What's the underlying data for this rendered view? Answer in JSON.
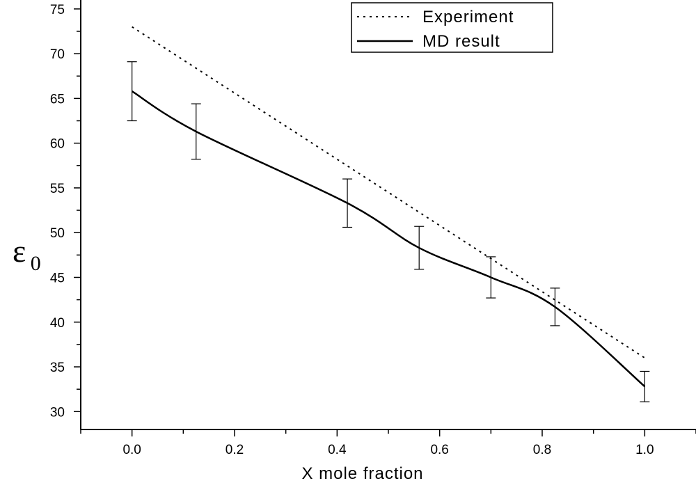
{
  "chart_data": {
    "type": "line",
    "title": "",
    "xlabel": "X mole fraction",
    "ylabel": "ε",
    "ylabel_subscript": "0",
    "xlim": [
      -0.1,
      1.1
    ],
    "ylim": [
      28,
      76
    ],
    "x_ticks": [
      "0.0",
      "0.2",
      "0.4",
      "0.6",
      "0.8",
      "1.0"
    ],
    "x_tick_values": [
      0.0,
      0.2,
      0.4,
      0.6,
      0.8,
      1.0
    ],
    "y_ticks": [
      "30",
      "35",
      "40",
      "45",
      "50",
      "55",
      "60",
      "65",
      "70",
      "75"
    ],
    "y_tick_values": [
      30,
      35,
      40,
      45,
      50,
      55,
      60,
      65,
      70,
      75
    ],
    "grid": false,
    "legend_position": "top-right",
    "series": [
      {
        "name": "Experiment",
        "style": "dotted",
        "x": [
          0.0,
          1.0
        ],
        "y": [
          73.0,
          36.0
        ]
      },
      {
        "name": "MD result",
        "style": "solid",
        "x": [
          0.0,
          0.125,
          0.42,
          0.56,
          0.7,
          0.825,
          1.0
        ],
        "y": [
          65.8,
          61.3,
          53.3,
          48.3,
          45.0,
          41.7,
          32.8
        ],
        "error": [
          3.3,
          3.1,
          2.7,
          2.4,
          2.3,
          2.1,
          1.7
        ]
      }
    ],
    "color": "#000000"
  }
}
